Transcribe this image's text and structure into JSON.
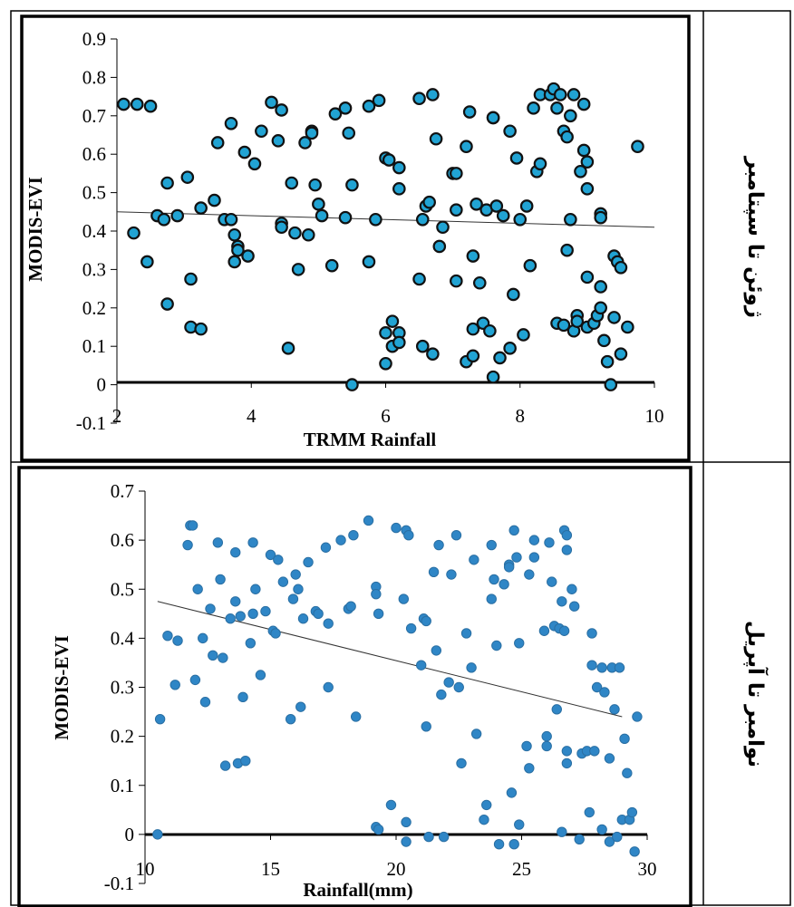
{
  "rows": [
    {
      "label": "ژوئن تا سپتامبر"
    },
    {
      "label": "نوامبر تا آپریل"
    }
  ],
  "chart_data": [
    {
      "type": "scatter",
      "title": "",
      "xlabel": "TRMM Rainfall",
      "ylabel": "MODIS-EVI",
      "xlim": [
        2,
        10
      ],
      "ylim": [
        -0.1,
        0.9
      ],
      "xticks": [
        2,
        4,
        6,
        8,
        10
      ],
      "yticks": [
        -0.1,
        0,
        0.1,
        0.2,
        0.3,
        0.4,
        0.5,
        0.6,
        0.7,
        0.8,
        0.9
      ],
      "marker_fill": "#21a3d3",
      "marker_stroke": "#111111",
      "grid": false,
      "trendline": {
        "x": [
          2,
          10
        ],
        "y": [
          0.45,
          0.41
        ]
      },
      "points": [
        [
          2.1,
          0.73
        ],
        [
          2.3,
          0.73
        ],
        [
          2.5,
          0.725
        ],
        [
          2.25,
          0.395
        ],
        [
          2.45,
          0.32
        ],
        [
          2.6,
          0.44
        ],
        [
          2.7,
          0.43
        ],
        [
          2.75,
          0.525
        ],
        [
          2.75,
          0.21
        ],
        [
          2.9,
          0.44
        ],
        [
          3.05,
          0.54
        ],
        [
          3.1,
          0.275
        ],
        [
          3.1,
          0.15
        ],
        [
          3.25,
          0.145
        ],
        [
          3.25,
          0.46
        ],
        [
          3.45,
          0.48
        ],
        [
          3.5,
          0.63
        ],
        [
          3.6,
          0.43
        ],
        [
          3.7,
          0.68
        ],
        [
          3.7,
          0.43
        ],
        [
          3.75,
          0.39
        ],
        [
          3.75,
          0.32
        ],
        [
          3.8,
          0.36
        ],
        [
          3.8,
          0.35
        ],
        [
          3.9,
          0.605
        ],
        [
          3.95,
          0.335
        ],
        [
          4.05,
          0.575
        ],
        [
          4.15,
          0.66
        ],
        [
          4.3,
          0.735
        ],
        [
          4.4,
          0.635
        ],
        [
          4.45,
          0.715
        ],
        [
          4.45,
          0.42
        ],
        [
          4.45,
          0.41
        ],
        [
          4.55,
          0.095
        ],
        [
          4.6,
          0.525
        ],
        [
          4.65,
          0.395
        ],
        [
          4.7,
          0.3
        ],
        [
          4.8,
          0.63
        ],
        [
          4.85,
          0.39
        ],
        [
          4.9,
          0.66
        ],
        [
          4.9,
          0.655
        ],
        [
          4.95,
          0.52
        ],
        [
          5.0,
          0.47
        ],
        [
          5.05,
          0.44
        ],
        [
          5.2,
          0.31
        ],
        [
          5.25,
          0.705
        ],
        [
          5.4,
          0.72
        ],
        [
          5.4,
          0.435
        ],
        [
          5.45,
          0.655
        ],
        [
          5.5,
          0.52
        ],
        [
          5.5,
          0.0
        ],
        [
          5.75,
          0.725
        ],
        [
          5.75,
          0.32
        ],
        [
          5.85,
          0.43
        ],
        [
          5.9,
          0.74
        ],
        [
          6.0,
          0.59
        ],
        [
          6.05,
          0.585
        ],
        [
          6.0,
          0.135
        ],
        [
          6.0,
          0.055
        ],
        [
          6.1,
          0.165
        ],
        [
          6.1,
          0.1
        ],
        [
          6.2,
          0.135
        ],
        [
          6.2,
          0.11
        ],
        [
          6.2,
          0.565
        ],
        [
          6.2,
          0.51
        ],
        [
          6.5,
          0.745
        ],
        [
          6.5,
          0.275
        ],
        [
          6.55,
          0.1
        ],
        [
          6.55,
          0.43
        ],
        [
          6.6,
          0.465
        ],
        [
          6.65,
          0.475
        ],
        [
          6.7,
          0.755
        ],
        [
          6.7,
          0.08
        ],
        [
          6.75,
          0.64
        ],
        [
          6.8,
          0.36
        ],
        [
          6.85,
          0.41
        ],
        [
          7.0,
          0.55
        ],
        [
          7.05,
          0.55
        ],
        [
          7.05,
          0.455
        ],
        [
          7.05,
          0.27
        ],
        [
          7.2,
          0.06
        ],
        [
          7.2,
          0.62
        ],
        [
          7.25,
          0.71
        ],
        [
          7.3,
          0.335
        ],
        [
          7.3,
          0.145
        ],
        [
          7.3,
          0.075
        ],
        [
          7.35,
          0.47
        ],
        [
          7.4,
          0.265
        ],
        [
          7.45,
          0.16
        ],
        [
          7.5,
          0.455
        ],
        [
          7.55,
          0.14
        ],
        [
          7.6,
          0.695
        ],
        [
          7.6,
          0.695
        ],
        [
          7.6,
          0.02
        ],
        [
          7.65,
          0.465
        ],
        [
          7.7,
          0.07
        ],
        [
          7.75,
          0.44
        ],
        [
          7.85,
          0.095
        ],
        [
          7.85,
          0.66
        ],
        [
          7.9,
          0.235
        ],
        [
          7.95,
          0.59
        ],
        [
          8.0,
          0.43
        ],
        [
          8.05,
          0.13
        ],
        [
          8.1,
          0.465
        ],
        [
          8.15,
          0.31
        ],
        [
          8.2,
          0.72
        ],
        [
          8.25,
          0.555
        ],
        [
          8.3,
          0.575
        ],
        [
          8.3,
          0.755
        ],
        [
          8.45,
          0.755
        ],
        [
          8.5,
          0.77
        ],
        [
          8.55,
          0.72
        ],
        [
          8.55,
          0.16
        ],
        [
          8.6,
          0.755
        ],
        [
          8.65,
          0.66
        ],
        [
          8.65,
          0.155
        ],
        [
          8.7,
          0.35
        ],
        [
          8.7,
          0.645
        ],
        [
          8.75,
          0.43
        ],
        [
          8.75,
          0.7
        ],
        [
          8.8,
          0.755
        ],
        [
          8.8,
          0.14
        ],
        [
          8.85,
          0.18
        ],
        [
          8.85,
          0.165
        ],
        [
          8.9,
          0.555
        ],
        [
          8.95,
          0.73
        ],
        [
          8.95,
          0.61
        ],
        [
          9.0,
          0.58
        ],
        [
          9.0,
          0.51
        ],
        [
          9.0,
          0.28
        ],
        [
          9.0,
          0.15
        ],
        [
          9.1,
          0.16
        ],
        [
          9.15,
          0.18
        ],
        [
          9.2,
          0.2
        ],
        [
          9.2,
          0.445
        ],
        [
          9.2,
          0.435
        ],
        [
          9.2,
          0.255
        ],
        [
          9.25,
          0.115
        ],
        [
          9.3,
          0.06
        ],
        [
          9.35,
          0.0
        ],
        [
          9.4,
          0.335
        ],
        [
          9.4,
          0.175
        ],
        [
          9.45,
          0.32
        ],
        [
          9.5,
          0.305
        ],
        [
          9.5,
          0.08
        ],
        [
          9.6,
          0.15
        ],
        [
          9.75,
          0.62
        ]
      ]
    },
    {
      "type": "scatter",
      "title": "",
      "xlabel": "Rainfall(mm)",
      "ylabel": "MODIS-EVI",
      "xlim": [
        10,
        30
      ],
      "ylim": [
        -0.1,
        0.7
      ],
      "xticks": [
        10,
        15,
        20,
        25,
        30
      ],
      "yticks": [
        -0.1,
        0,
        0.1,
        0.2,
        0.3,
        0.4,
        0.5,
        0.6,
        0.7
      ],
      "marker_fill": "#2f86c6",
      "marker_stroke": "#2a6fa3",
      "grid": false,
      "trendline": {
        "x": [
          10.5,
          29
        ],
        "y": [
          0.475,
          0.24
        ]
      },
      "points": [
        [
          10.5,
          0.0
        ],
        [
          10.6,
          0.235
        ],
        [
          10.9,
          0.405
        ],
        [
          11.2,
          0.305
        ],
        [
          11.3,
          0.395
        ],
        [
          11.7,
          0.59
        ],
        [
          11.8,
          0.63
        ],
        [
          11.9,
          0.63
        ],
        [
          12.0,
          0.315
        ],
        [
          12.1,
          0.5
        ],
        [
          12.3,
          0.4
        ],
        [
          12.4,
          0.27
        ],
        [
          12.6,
          0.46
        ],
        [
          12.7,
          0.365
        ],
        [
          12.9,
          0.595
        ],
        [
          13.0,
          0.52
        ],
        [
          13.1,
          0.36
        ],
        [
          13.2,
          0.14
        ],
        [
          13.4,
          0.44
        ],
        [
          13.6,
          0.575
        ],
        [
          13.6,
          0.475
        ],
        [
          13.7,
          0.145
        ],
        [
          13.8,
          0.445
        ],
        [
          13.9,
          0.28
        ],
        [
          14.0,
          0.15
        ],
        [
          14.2,
          0.39
        ],
        [
          14.3,
          0.45
        ],
        [
          14.3,
          0.595
        ],
        [
          14.4,
          0.5
        ],
        [
          14.6,
          0.325
        ],
        [
          14.8,
          0.455
        ],
        [
          15.0,
          0.57
        ],
        [
          15.1,
          0.415
        ],
        [
          15.2,
          0.41
        ],
        [
          15.3,
          0.56
        ],
        [
          15.5,
          0.515
        ],
        [
          15.8,
          0.235
        ],
        [
          15.9,
          0.48
        ],
        [
          16.0,
          0.53
        ],
        [
          16.1,
          0.5
        ],
        [
          16.2,
          0.26
        ],
        [
          16.3,
          0.44
        ],
        [
          16.5,
          0.555
        ],
        [
          16.8,
          0.455
        ],
        [
          16.9,
          0.45
        ],
        [
          17.2,
          0.585
        ],
        [
          17.3,
          0.43
        ],
        [
          17.3,
          0.3
        ],
        [
          17.8,
          0.6
        ],
        [
          18.1,
          0.46
        ],
        [
          18.2,
          0.465
        ],
        [
          18.3,
          0.61
        ],
        [
          18.4,
          0.24
        ],
        [
          18.9,
          0.64
        ],
        [
          19.2,
          0.505
        ],
        [
          19.2,
          0.49
        ],
        [
          19.3,
          0.45
        ],
        [
          19.2,
          0.015
        ],
        [
          19.3,
          0.01
        ],
        [
          19.8,
          0.06
        ],
        [
          20.0,
          0.625
        ],
        [
          20.3,
          0.48
        ],
        [
          20.4,
          0.62
        ],
        [
          20.5,
          0.61
        ],
        [
          20.6,
          0.42
        ],
        [
          20.4,
          0.025
        ],
        [
          20.4,
          -0.015
        ],
        [
          21.0,
          0.345
        ],
        [
          21.1,
          0.44
        ],
        [
          21.2,
          0.435
        ],
        [
          21.2,
          0.22
        ],
        [
          21.3,
          -0.005
        ],
        [
          21.5,
          0.535
        ],
        [
          21.6,
          0.375
        ],
        [
          21.7,
          0.59
        ],
        [
          21.8,
          0.285
        ],
        [
          21.9,
          -0.005
        ],
        [
          22.1,
          0.31
        ],
        [
          22.2,
          0.53
        ],
        [
          22.4,
          0.61
        ],
        [
          22.5,
          0.3
        ],
        [
          22.6,
          0.145
        ],
        [
          22.8,
          0.41
        ],
        [
          23.0,
          0.34
        ],
        [
          23.1,
          0.56
        ],
        [
          23.2,
          0.205
        ],
        [
          23.5,
          0.03
        ],
        [
          23.6,
          0.06
        ],
        [
          23.8,
          0.48
        ],
        [
          23.8,
          0.59
        ],
        [
          23.9,
          0.52
        ],
        [
          24.0,
          0.385
        ],
        [
          24.1,
          -0.02
        ],
        [
          24.3,
          0.51
        ],
        [
          24.5,
          0.55
        ],
        [
          24.5,
          0.545
        ],
        [
          24.6,
          0.085
        ],
        [
          24.7,
          0.62
        ],
        [
          24.7,
          -0.02
        ],
        [
          24.8,
          0.565
        ],
        [
          24.9,
          0.39
        ],
        [
          24.9,
          0.02
        ],
        [
          25.2,
          0.18
        ],
        [
          25.3,
          0.53
        ],
        [
          25.3,
          0.135
        ],
        [
          25.5,
          0.6
        ],
        [
          25.5,
          0.565
        ],
        [
          25.9,
          0.415
        ],
        [
          26.0,
          0.2
        ],
        [
          26.0,
          0.18
        ],
        [
          26.1,
          0.595
        ],
        [
          26.2,
          0.515
        ],
        [
          26.3,
          0.425
        ],
        [
          26.4,
          0.255
        ],
        [
          26.5,
          0.42
        ],
        [
          26.6,
          0.475
        ],
        [
          26.6,
          0.005
        ],
        [
          26.7,
          0.62
        ],
        [
          26.7,
          0.415
        ],
        [
          26.8,
          0.61
        ],
        [
          26.8,
          0.58
        ],
        [
          26.8,
          0.145
        ],
        [
          26.8,
          0.17
        ],
        [
          27.0,
          0.5
        ],
        [
          27.1,
          0.465
        ],
        [
          27.3,
          -0.01
        ],
        [
          27.4,
          0.165
        ],
        [
          27.6,
          0.17
        ],
        [
          27.7,
          0.045
        ],
        [
          27.8,
          0.41
        ],
        [
          27.8,
          0.345
        ],
        [
          27.9,
          0.17
        ],
        [
          28.0,
          0.3
        ],
        [
          28.2,
          0.34
        ],
        [
          28.2,
          0.01
        ],
        [
          28.3,
          0.29
        ],
        [
          28.5,
          0.155
        ],
        [
          28.5,
          -0.015
        ],
        [
          28.6,
          0.34
        ],
        [
          28.7,
          0.255
        ],
        [
          28.8,
          -0.005
        ],
        [
          28.9,
          0.34
        ],
        [
          29.0,
          0.03
        ],
        [
          29.1,
          0.195
        ],
        [
          29.2,
          0.125
        ],
        [
          29.3,
          0.03
        ],
        [
          29.4,
          0.045
        ],
        [
          29.5,
          -0.035
        ],
        [
          29.6,
          0.24
        ]
      ]
    }
  ]
}
